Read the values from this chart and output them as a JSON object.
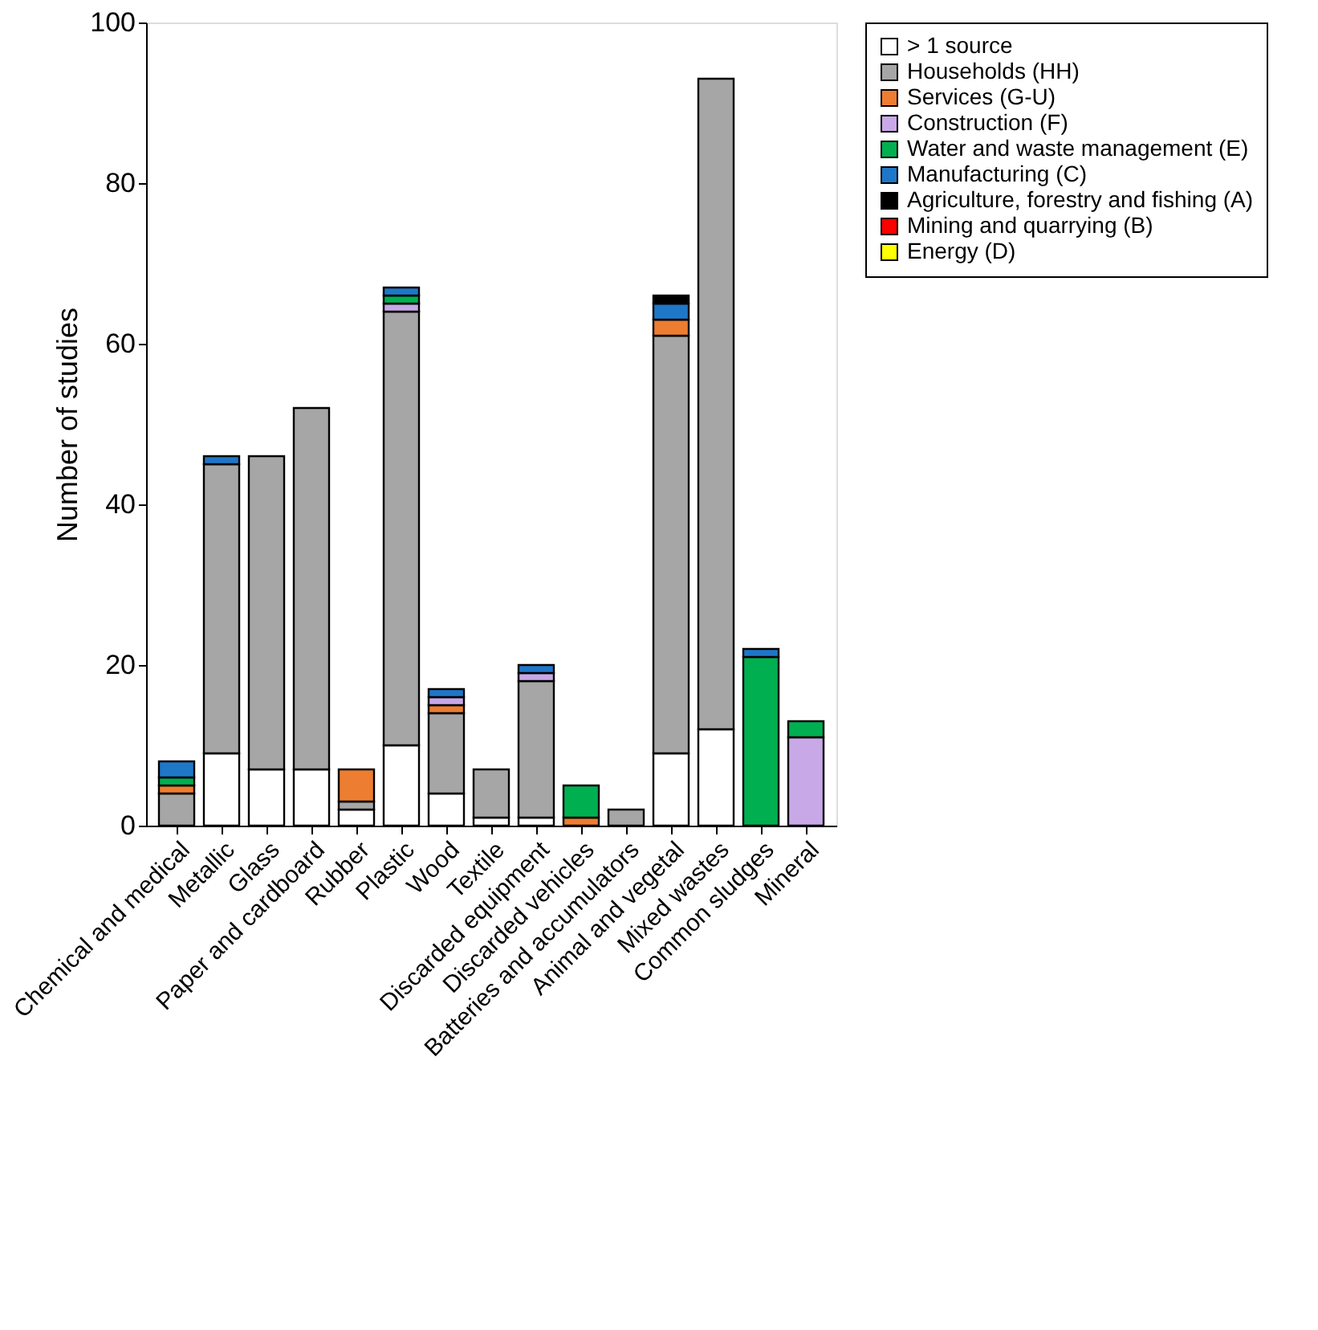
{
  "chart_data": {
    "type": "bar",
    "stacked": true,
    "ylabel": "Number of studies",
    "categories": [
      "Chemical and medical",
      "Metallic",
      "Glass",
      "Paper and cardboard",
      "Rubber",
      "Plastic",
      "Wood",
      "Textile",
      "Discarded equipment",
      "Discarded vehicles",
      "Batteries and accumulators",
      "Animal and vegetal",
      "Mixed wastes",
      "Common sludges",
      "Mineral"
    ],
    "series": [
      {
        "name": "> 1 source",
        "color": "#ffffff",
        "values": [
          null,
          9,
          7,
          7,
          2,
          10,
          4,
          1,
          1,
          null,
          null,
          9,
          12,
          null,
          null
        ]
      },
      {
        "name": "Households (HH)",
        "color": "#a6a6a6",
        "values": [
          4,
          36,
          39,
          45,
          1,
          54,
          10,
          6,
          17,
          null,
          2,
          52,
          81,
          null,
          null
        ]
      },
      {
        "name": "Services (G-U)",
        "color": "#ed7d31",
        "values": [
          1,
          null,
          null,
          null,
          4,
          null,
          1,
          null,
          null,
          1,
          null,
          2,
          null,
          null,
          null
        ]
      },
      {
        "name": "Construction (F)",
        "color": "#c9a8e8",
        "values": [
          null,
          null,
          null,
          null,
          null,
          1,
          1,
          null,
          1,
          null,
          null,
          null,
          null,
          null,
          11
        ]
      },
      {
        "name": "Water and waste management (E)",
        "color": "#00b050",
        "values": [
          1,
          null,
          null,
          null,
          null,
          1,
          null,
          null,
          null,
          4,
          null,
          null,
          null,
          21,
          2
        ]
      },
      {
        "name": "Manufacturing (C)",
        "color": "#1f77c8",
        "values": [
          2,
          1,
          null,
          null,
          null,
          1,
          1,
          null,
          1,
          null,
          null,
          2,
          null,
          1,
          null
        ]
      },
      {
        "name": "Agriculture, forestry and fishing (A)",
        "color": "#000000",
        "values": [
          null,
          null,
          null,
          null,
          null,
          null,
          null,
          null,
          null,
          null,
          null,
          1,
          null,
          null,
          null
        ]
      },
      {
        "name": "Mining and quarrying (B)",
        "color": "#ff0000",
        "values": [
          null,
          null,
          null,
          null,
          null,
          null,
          null,
          null,
          null,
          null,
          null,
          null,
          null,
          null,
          null
        ]
      },
      {
        "name": "Energy (D)",
        "color": "#ffff00",
        "values": [
          null,
          null,
          null,
          null,
          null,
          null,
          null,
          null,
          null,
          null,
          null,
          null,
          null,
          null,
          null
        ]
      }
    ],
    "ylim": [
      0,
      100
    ],
    "yticks": [
      0,
      20,
      40,
      60,
      80,
      100
    ],
    "grid": false,
    "legend": "right"
  }
}
